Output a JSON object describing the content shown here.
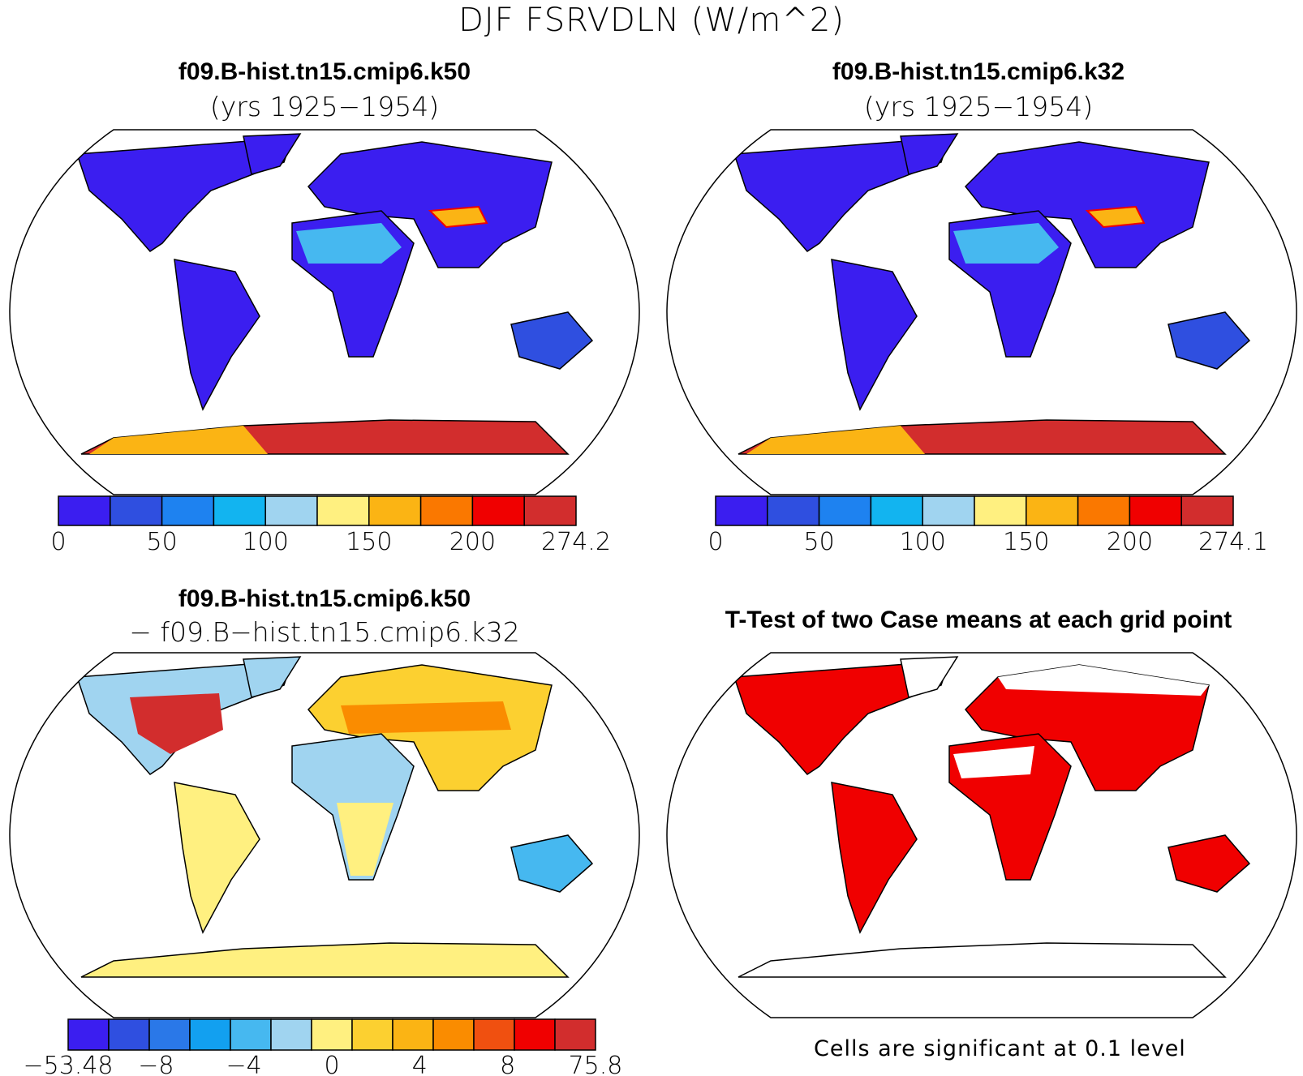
{
  "title": "DJF FSRVDLN (W/m^2)",
  "panels": [
    {
      "id": "k50",
      "title": "f09.B-hist.tn15.cmip6.k50",
      "subtitle": "(yrs 1925−1954)",
      "colorbar": {
        "colors": [
          "#3b1ef0",
          "#2f4fe0",
          "#1e82f0",
          "#12b4f0",
          "#a0d4f0",
          "#fff080",
          "#fbb414",
          "#fa7800",
          "#f00000",
          "#d22d2d"
        ],
        "tick_labels": [
          "0",
          "50",
          "100",
          "150",
          "200",
          "274.2"
        ]
      }
    },
    {
      "id": "k32",
      "title": "f09.B-hist.tn15.cmip6.k32",
      "subtitle": "(yrs 1925−1954)",
      "colorbar": {
        "colors": [
          "#3b1ef0",
          "#2f4fe0",
          "#1e82f0",
          "#12b4f0",
          "#a0d4f0",
          "#fff080",
          "#fbb414",
          "#fa7800",
          "#f00000",
          "#d22d2d"
        ],
        "tick_labels": [
          "0",
          "50",
          "100",
          "150",
          "200",
          "274.1"
        ]
      }
    },
    {
      "id": "diff",
      "title": "f09.B-hist.tn15.cmip6.k50",
      "subtitle": "− f09.B−hist.tn15.cmip6.k32",
      "colorbar": {
        "colors": [
          "#3b1ef0",
          "#2f4fe0",
          "#2a78e8",
          "#12a0f0",
          "#46b8f0",
          "#a0d4f0",
          "#fff080",
          "#fcd030",
          "#fbb414",
          "#fa8c00",
          "#f05010",
          "#f00000",
          "#d22d2d"
        ],
        "tick_labels": [
          "−53.48",
          "−8",
          "−4",
          "0",
          "4",
          "8",
          "75.8"
        ]
      }
    },
    {
      "id": "ttest",
      "title": "T-Test of two Case means at each grid point",
      "note": "Cells are significant at 0.1 level",
      "significant_color": "#f00000"
    }
  ]
}
